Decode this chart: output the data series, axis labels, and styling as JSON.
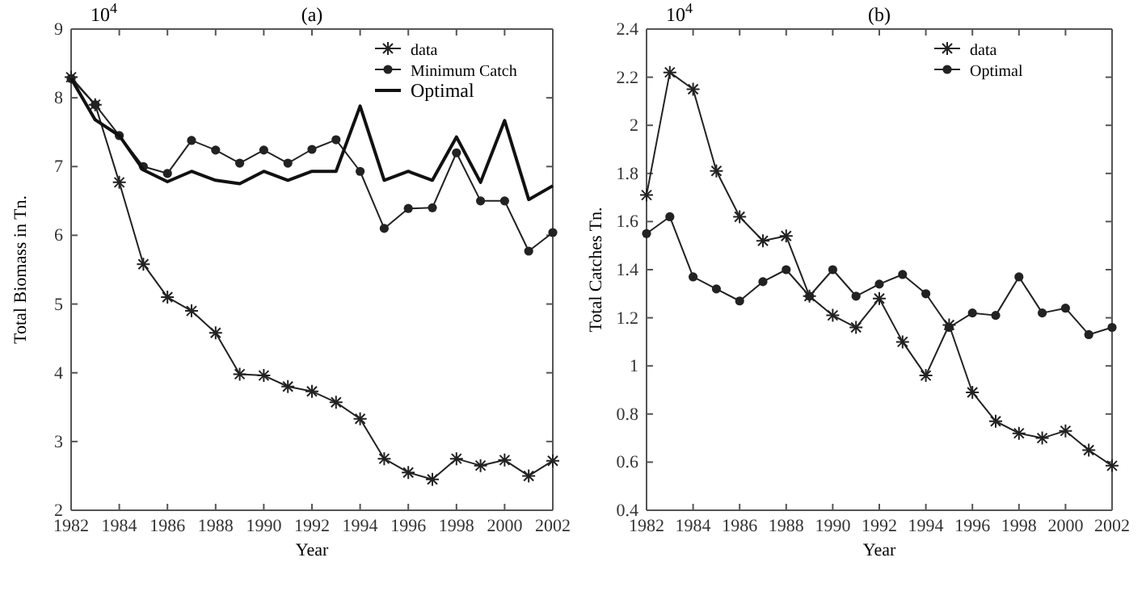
{
  "chart_data": [
    {
      "type": "line",
      "title": "(a)",
      "xlabel": "Year",
      "ylabel": "Total Biomass in Tn.",
      "annotations": [
        "10$^{4}$"
      ],
      "x": [
        1982,
        1983,
        1984,
        1985,
        1986,
        1987,
        1988,
        1989,
        1990,
        1991,
        1992,
        1993,
        1994,
        1995,
        1996,
        1997,
        1998,
        1999,
        2000,
        2001,
        2002
      ],
      "xlim": [
        1982,
        2002
      ],
      "xticks": [
        1982,
        1984,
        1986,
        1988,
        1990,
        1992,
        1994,
        1996,
        1998,
        2000,
        2002
      ],
      "ylim": [
        2,
        9
      ],
      "yticks": [
        2,
        3,
        4,
        5,
        6,
        7,
        8,
        9
      ],
      "grid": false,
      "legend": "top right",
      "series": [
        {
          "name": "data",
          "color": "#222222",
          "marker": "cross",
          "values": [
            8.3,
            7.9,
            6.77,
            5.58,
            5.1,
            4.9,
            4.58,
            3.98,
            3.96,
            3.8,
            3.73,
            3.57,
            3.33,
            2.75,
            2.55,
            2.45,
            2.75,
            2.65,
            2.73,
            2.5,
            2.72
          ]
        },
        {
          "name": "Minimum Catch",
          "color": "#222222",
          "marker": "circle",
          "values": [
            8.28,
            7.9,
            7.45,
            7.0,
            6.9,
            7.38,
            7.24,
            7.05,
            7.24,
            7.05,
            7.25,
            7.39,
            6.93,
            6.1,
            6.39,
            6.4,
            7.2,
            6.5,
            6.5,
            5.77,
            6.04
          ]
        },
        {
          "name": "Optimal",
          "color": "#111111",
          "marker": "none",
          "values": [
            8.28,
            7.68,
            7.45,
            6.95,
            6.78,
            6.93,
            6.8,
            6.75,
            6.93,
            6.8,
            6.93,
            6.93,
            7.88,
            6.8,
            6.93,
            6.8,
            7.43,
            6.77,
            7.67,
            6.52,
            6.72
          ]
        }
      ]
    },
    {
      "type": "line",
      "title": "(b)",
      "xlabel": "Year",
      "ylabel": "Total Catches Tn.",
      "annotations": [
        "10$^{4}$"
      ],
      "x": [
        1982,
        1983,
        1984,
        1985,
        1986,
        1987,
        1988,
        1989,
        1990,
        1991,
        1992,
        1993,
        1994,
        1995,
        1996,
        1997,
        1998,
        1999,
        2000,
        2001,
        2002
      ],
      "xlim": [
        1982,
        2002
      ],
      "xticks": [
        1982,
        1984,
        1986,
        1988,
        1990,
        1992,
        1994,
        1996,
        1998,
        2000,
        2002
      ],
      "ylim": [
        0.4,
        2.4
      ],
      "yticks": [
        0.4,
        0.6,
        0.8,
        1,
        1.2,
        1.4,
        1.6,
        1.8,
        2,
        2.2,
        2.4
      ],
      "grid": false,
      "legend": "top right",
      "series": [
        {
          "name": "data",
          "color": "#222222",
          "marker": "cross",
          "values": [
            1.71,
            2.22,
            2.15,
            1.81,
            1.62,
            1.52,
            1.54,
            1.29,
            1.21,
            1.16,
            1.28,
            1.1,
            0.96,
            1.17,
            0.89,
            0.77,
            0.72,
            0.7,
            0.73,
            0.65,
            0.585
          ]
        },
        {
          "name": "Optimal",
          "color": "#222222",
          "marker": "circle",
          "values": [
            1.55,
            1.62,
            1.37,
            1.32,
            1.27,
            1.35,
            1.4,
            1.29,
            1.4,
            1.29,
            1.34,
            1.38,
            1.3,
            1.16,
            1.22,
            1.21,
            1.37,
            1.22,
            1.24,
            1.13,
            1.16
          ]
        }
      ]
    }
  ]
}
